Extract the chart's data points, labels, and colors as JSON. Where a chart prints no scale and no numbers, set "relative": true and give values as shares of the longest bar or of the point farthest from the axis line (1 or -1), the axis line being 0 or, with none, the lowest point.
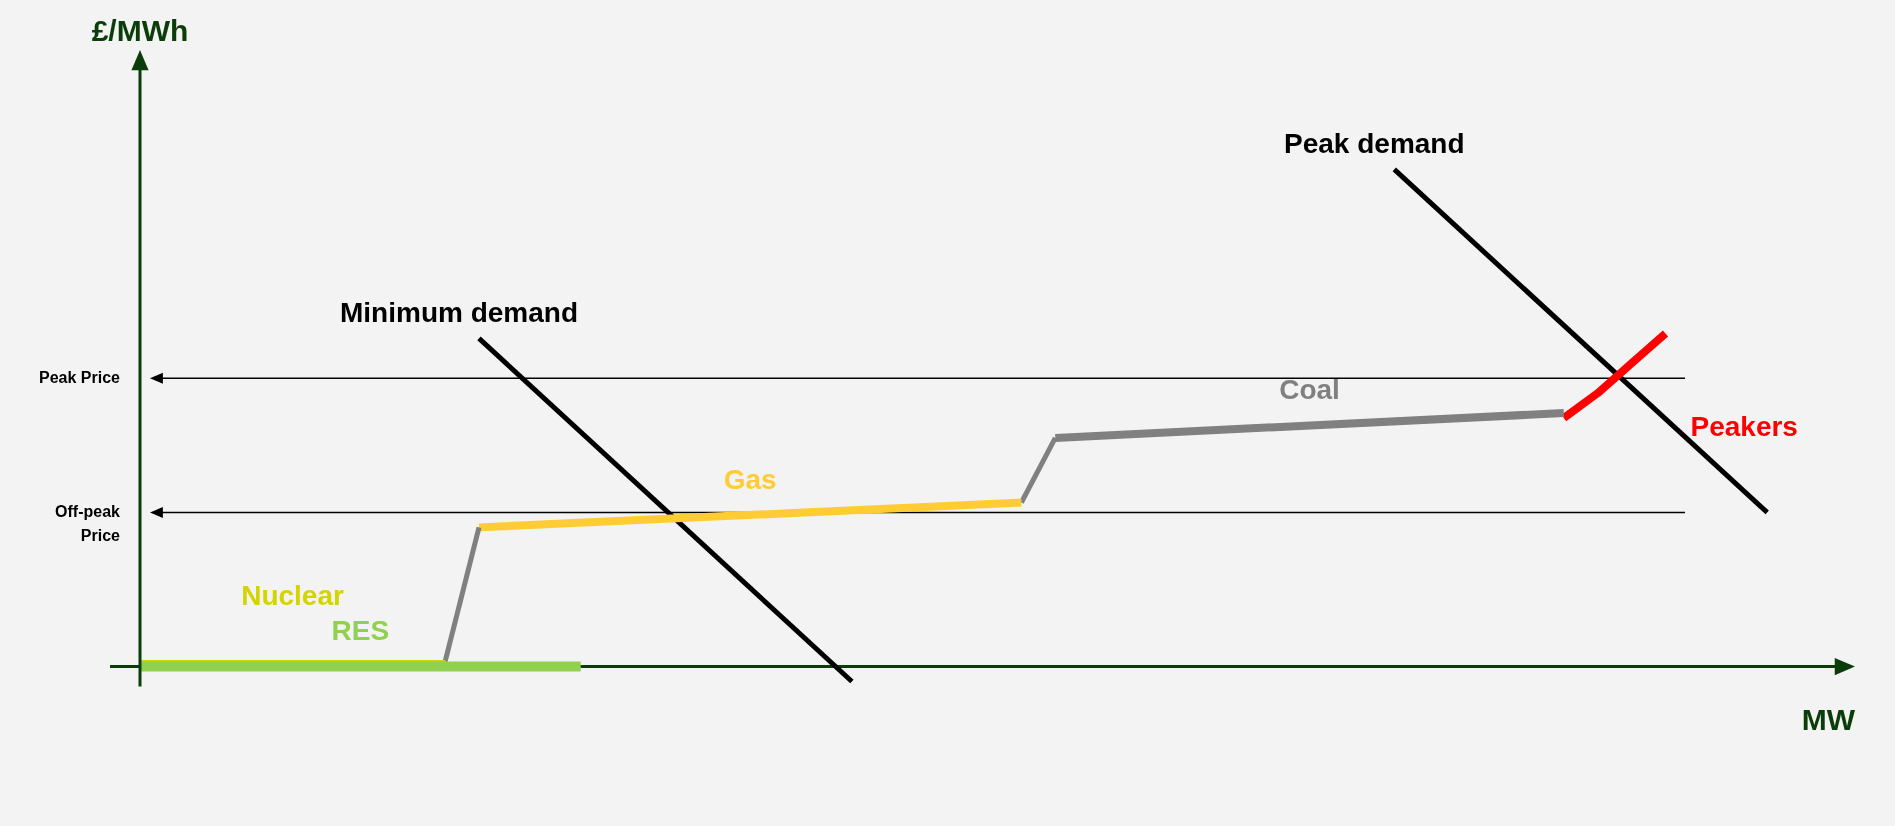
{
  "chart_data": {
    "type": "line",
    "relative": true,
    "xlabel": "MW",
    "ylabel": "£/MWh",
    "legend": false,
    "marker": "none",
    "categories": [
      null,
      null,
      null,
      null,
      null,
      null,
      null,
      null,
      null,
      null,
      null,
      null,
      null,
      null,
      null,
      null,
      null,
      null,
      null,
      null,
      null,
      null,
      null,
      null,
      null,
      null,
      null,
      null,
      null,
      null,
      null,
      null,
      null,
      null,
      null,
      null,
      null,
      null,
      null,
      null,
      null,
      null,
      null,
      null,
      null,
      null,
      null,
      null,
      null,
      null,
      null
    ],
    "series": [
      {
        "name": "RES",
        "color": "#92d050",
        "values": [
          0,
          null,
          null,
          null,
          null,
          null,
          null,
          null,
          null,
          null,
          null,
          null,
          null,
          0,
          null,
          null,
          null,
          null,
          null,
          null,
          null,
          null,
          null,
          null,
          null,
          null,
          null,
          null,
          null,
          null,
          null,
          null,
          null,
          null,
          null,
          null,
          null,
          null,
          null,
          null,
          null,
          null,
          null,
          null,
          null,
          null,
          null,
          null,
          null,
          null,
          null
        ]
      },
      {
        "name": "Nuclear",
        "color": "#d4d400",
        "values": [
          0.01,
          null,
          null,
          null,
          null,
          null,
          null,
          null,
          null,
          0.01,
          null,
          null,
          null,
          null,
          null,
          null,
          null,
          null,
          null,
          null,
          null,
          null,
          null,
          null,
          null,
          null,
          null,
          null,
          null,
          null,
          null,
          null,
          null,
          null,
          null,
          null,
          null,
          null,
          null,
          null,
          null,
          null,
          null,
          null,
          null,
          null,
          null,
          null,
          null,
          null,
          null
        ]
      },
      {
        "color": "#808080",
        "values": [
          null,
          null,
          null,
          null,
          null,
          null,
          null,
          null,
          null,
          0.01,
          0.28,
          null,
          null,
          null,
          null,
          null,
          null,
          null,
          null,
          null,
          null,
          null,
          null,
          null,
          null,
          null,
          null,
          null,
          null,
          null,
          null,
          null,
          null,
          null,
          null,
          null,
          null,
          null,
          null,
          null,
          null,
          null,
          null,
          null,
          null,
          null,
          null,
          null,
          null,
          null,
          null
        ]
      },
      {
        "name": "Gas",
        "color": "#ffcc33",
        "values": [
          null,
          null,
          null,
          null,
          null,
          null,
          null,
          null,
          null,
          null,
          0.28,
          null,
          null,
          null,
          null,
          null,
          null,
          null,
          null,
          null,
          null,
          null,
          null,
          null,
          null,
          null,
          0.33,
          null,
          null,
          null,
          null,
          null,
          null,
          null,
          null,
          null,
          null,
          null,
          null,
          null,
          null,
          null,
          null,
          null,
          null,
          null,
          null,
          null,
          null,
          null,
          null
        ]
      },
      {
        "color": "#808080",
        "values": [
          null,
          null,
          null,
          null,
          null,
          null,
          null,
          null,
          null,
          null,
          null,
          null,
          null,
          null,
          null,
          null,
          null,
          null,
          null,
          null,
          null,
          null,
          null,
          null,
          null,
          null,
          0.33,
          0.46,
          null,
          null,
          null,
          null,
          null,
          null,
          null,
          null,
          null,
          null,
          null,
          null,
          null,
          null,
          null,
          null,
          null,
          null,
          null,
          null,
          null,
          null,
          null
        ]
      },
      {
        "name": "Coal",
        "color": "#808080",
        "values": [
          null,
          null,
          null,
          null,
          null,
          null,
          null,
          null,
          null,
          null,
          null,
          null,
          null,
          null,
          null,
          null,
          null,
          null,
          null,
          null,
          null,
          null,
          null,
          null,
          null,
          null,
          null,
          0.46,
          null,
          null,
          null,
          null,
          null,
          null,
          null,
          null,
          null,
          null,
          null,
          null,
          null,
          null,
          0.51,
          null,
          null,
          null,
          null,
          null,
          null,
          null,
          null
        ]
      },
      {
        "name": "Peakers",
        "color": "#ff0000",
        "values": [
          null,
          null,
          null,
          null,
          null,
          null,
          null,
          null,
          null,
          null,
          null,
          null,
          null,
          null,
          null,
          null,
          null,
          null,
          null,
          null,
          null,
          null,
          null,
          null,
          null,
          null,
          null,
          null,
          null,
          null,
          null,
          null,
          null,
          null,
          null,
          null,
          null,
          null,
          null,
          null,
          null,
          null,
          0.5,
          0.55,
          0.61,
          0.67,
          null,
          null,
          null,
          null,
          null
        ]
      },
      {
        "name": "Minimum demand",
        "color": "#000000",
        "values": [
          null,
          null,
          null,
          null,
          null,
          null,
          null,
          null,
          null,
          null,
          0.66,
          null,
          null,
          null,
          null,
          null,
          null,
          null,
          null,
          null,
          null,
          -0.03,
          null,
          null,
          null,
          null,
          null,
          null,
          null,
          null,
          null,
          null,
          null,
          null,
          null,
          null,
          null,
          null,
          null,
          null,
          null,
          null,
          null,
          null,
          null,
          null,
          null,
          null,
          null,
          null,
          null
        ]
      },
      {
        "name": "Peak demand",
        "color": "#000000",
        "values": [
          null,
          null,
          null,
          null,
          null,
          null,
          null,
          null,
          null,
          null,
          null,
          null,
          null,
          null,
          null,
          null,
          null,
          null,
          null,
          null,
          null,
          null,
          null,
          null,
          null,
          null,
          null,
          null,
          null,
          null,
          null,
          null,
          null,
          null,
          null,
          null,
          null,
          1,
          null,
          null,
          null,
          null,
          null,
          null,
          null,
          null,
          null,
          null,
          0.31,
          null,
          null
        ]
      }
    ],
    "ref_lines": [
      {
        "axis": "y",
        "value": 0.58,
        "label": "Peak Price",
        "color": "#000000"
      },
      {
        "axis": "y",
        "value": 0.31,
        "label": "Off-peak Price",
        "color": "#000000"
      }
    ]
  }
}
